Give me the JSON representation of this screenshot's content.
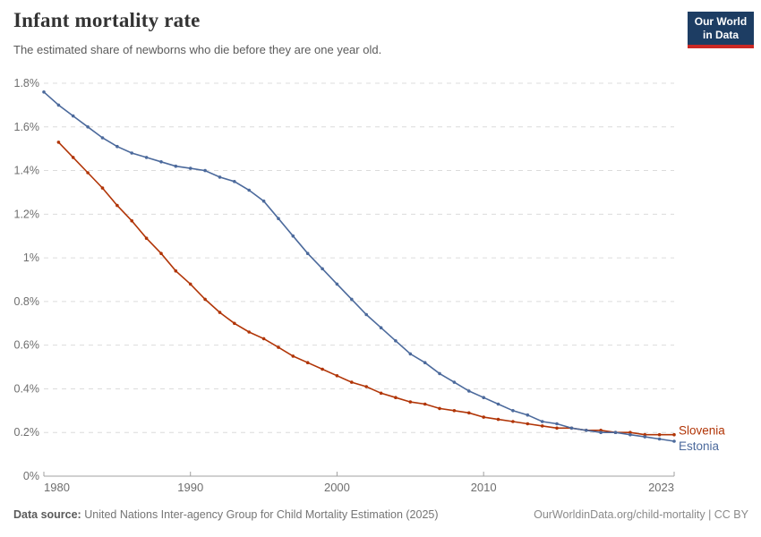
{
  "header": {
    "title": "Infant mortality rate",
    "subtitle": "The estimated share of newborns who die before they are one year old.",
    "logo": {
      "line1": "Our World",
      "line2": "in Data"
    }
  },
  "colors": {
    "slovenia": "#B13507",
    "estonia": "#4C6A9C",
    "gridline": "#dcdcdc",
    "axis_line": "#a0a0a0",
    "tick_label": "#6e6e6e",
    "logo_bg": "#1d3d63",
    "logo_bar": "#cb2824"
  },
  "chart_data": {
    "type": "line",
    "title": "Infant mortality rate",
    "subtitle": "The estimated share of newborns who die before they are one year old.",
    "xlabel": "",
    "ylabel": "",
    "x_range": [
      1980,
      2023
    ],
    "y_range": [
      0,
      1.8
    ],
    "grid": "horizontal-dashed",
    "legend_position": "end-of-line-labels",
    "x_ticks": [
      {
        "year": 1980,
        "label": "1980"
      },
      {
        "year": 1990,
        "label": "1990"
      },
      {
        "year": 2000,
        "label": "2000"
      },
      {
        "year": 2010,
        "label": "2010"
      },
      {
        "year": 2023,
        "label": "2023"
      }
    ],
    "y_ticks": [
      {
        "value": 0,
        "label": "0%"
      },
      {
        "value": 0.2,
        "label": "0.2%"
      },
      {
        "value": 0.4,
        "label": "0.4%"
      },
      {
        "value": 0.6,
        "label": "0.6%"
      },
      {
        "value": 0.8,
        "label": "0.8%"
      },
      {
        "value": 1,
        "label": "1%"
      },
      {
        "value": 1.2,
        "label": "1.2%"
      },
      {
        "value": 1.4,
        "label": "1.4%"
      },
      {
        "value": 1.6,
        "label": "1.6%"
      },
      {
        "value": 1.8,
        "label": "1.8%"
      }
    ],
    "unit": "%",
    "series": [
      {
        "name": "Slovenia",
        "color": "#B13507",
        "start_year": 1981,
        "values": [
          1.53,
          1.46,
          1.39,
          1.32,
          1.24,
          1.17,
          1.09,
          1.02,
          0.94,
          0.88,
          0.81,
          0.75,
          0.7,
          0.66,
          0.63,
          0.59,
          0.55,
          0.52,
          0.49,
          0.46,
          0.43,
          0.41,
          0.38,
          0.36,
          0.34,
          0.33,
          0.31,
          0.3,
          0.29,
          0.27,
          0.26,
          0.25,
          0.24,
          0.23,
          0.22,
          0.22,
          0.21,
          0.21,
          0.2,
          0.2,
          0.19,
          0.19,
          0.19
        ]
      },
      {
        "name": "Estonia",
        "color": "#4C6A9C",
        "start_year": 1980,
        "values": [
          1.76,
          1.7,
          1.65,
          1.6,
          1.55,
          1.51,
          1.48,
          1.46,
          1.44,
          1.42,
          1.41,
          1.4,
          1.37,
          1.35,
          1.31,
          1.26,
          1.18,
          1.1,
          1.02,
          0.95,
          0.88,
          0.81,
          0.74,
          0.68,
          0.62,
          0.56,
          0.52,
          0.47,
          0.43,
          0.39,
          0.36,
          0.33,
          0.3,
          0.28,
          0.25,
          0.24,
          0.22,
          0.21,
          0.2,
          0.2,
          0.19,
          0.18,
          0.17,
          0.16
        ]
      }
    ]
  },
  "footer": {
    "source_label": "Data source:",
    "source_text": "United Nations Inter-agency Group for Child Mortality Estimation (2025)",
    "link": "OurWorldinData.org/child-mortality | CC BY"
  }
}
